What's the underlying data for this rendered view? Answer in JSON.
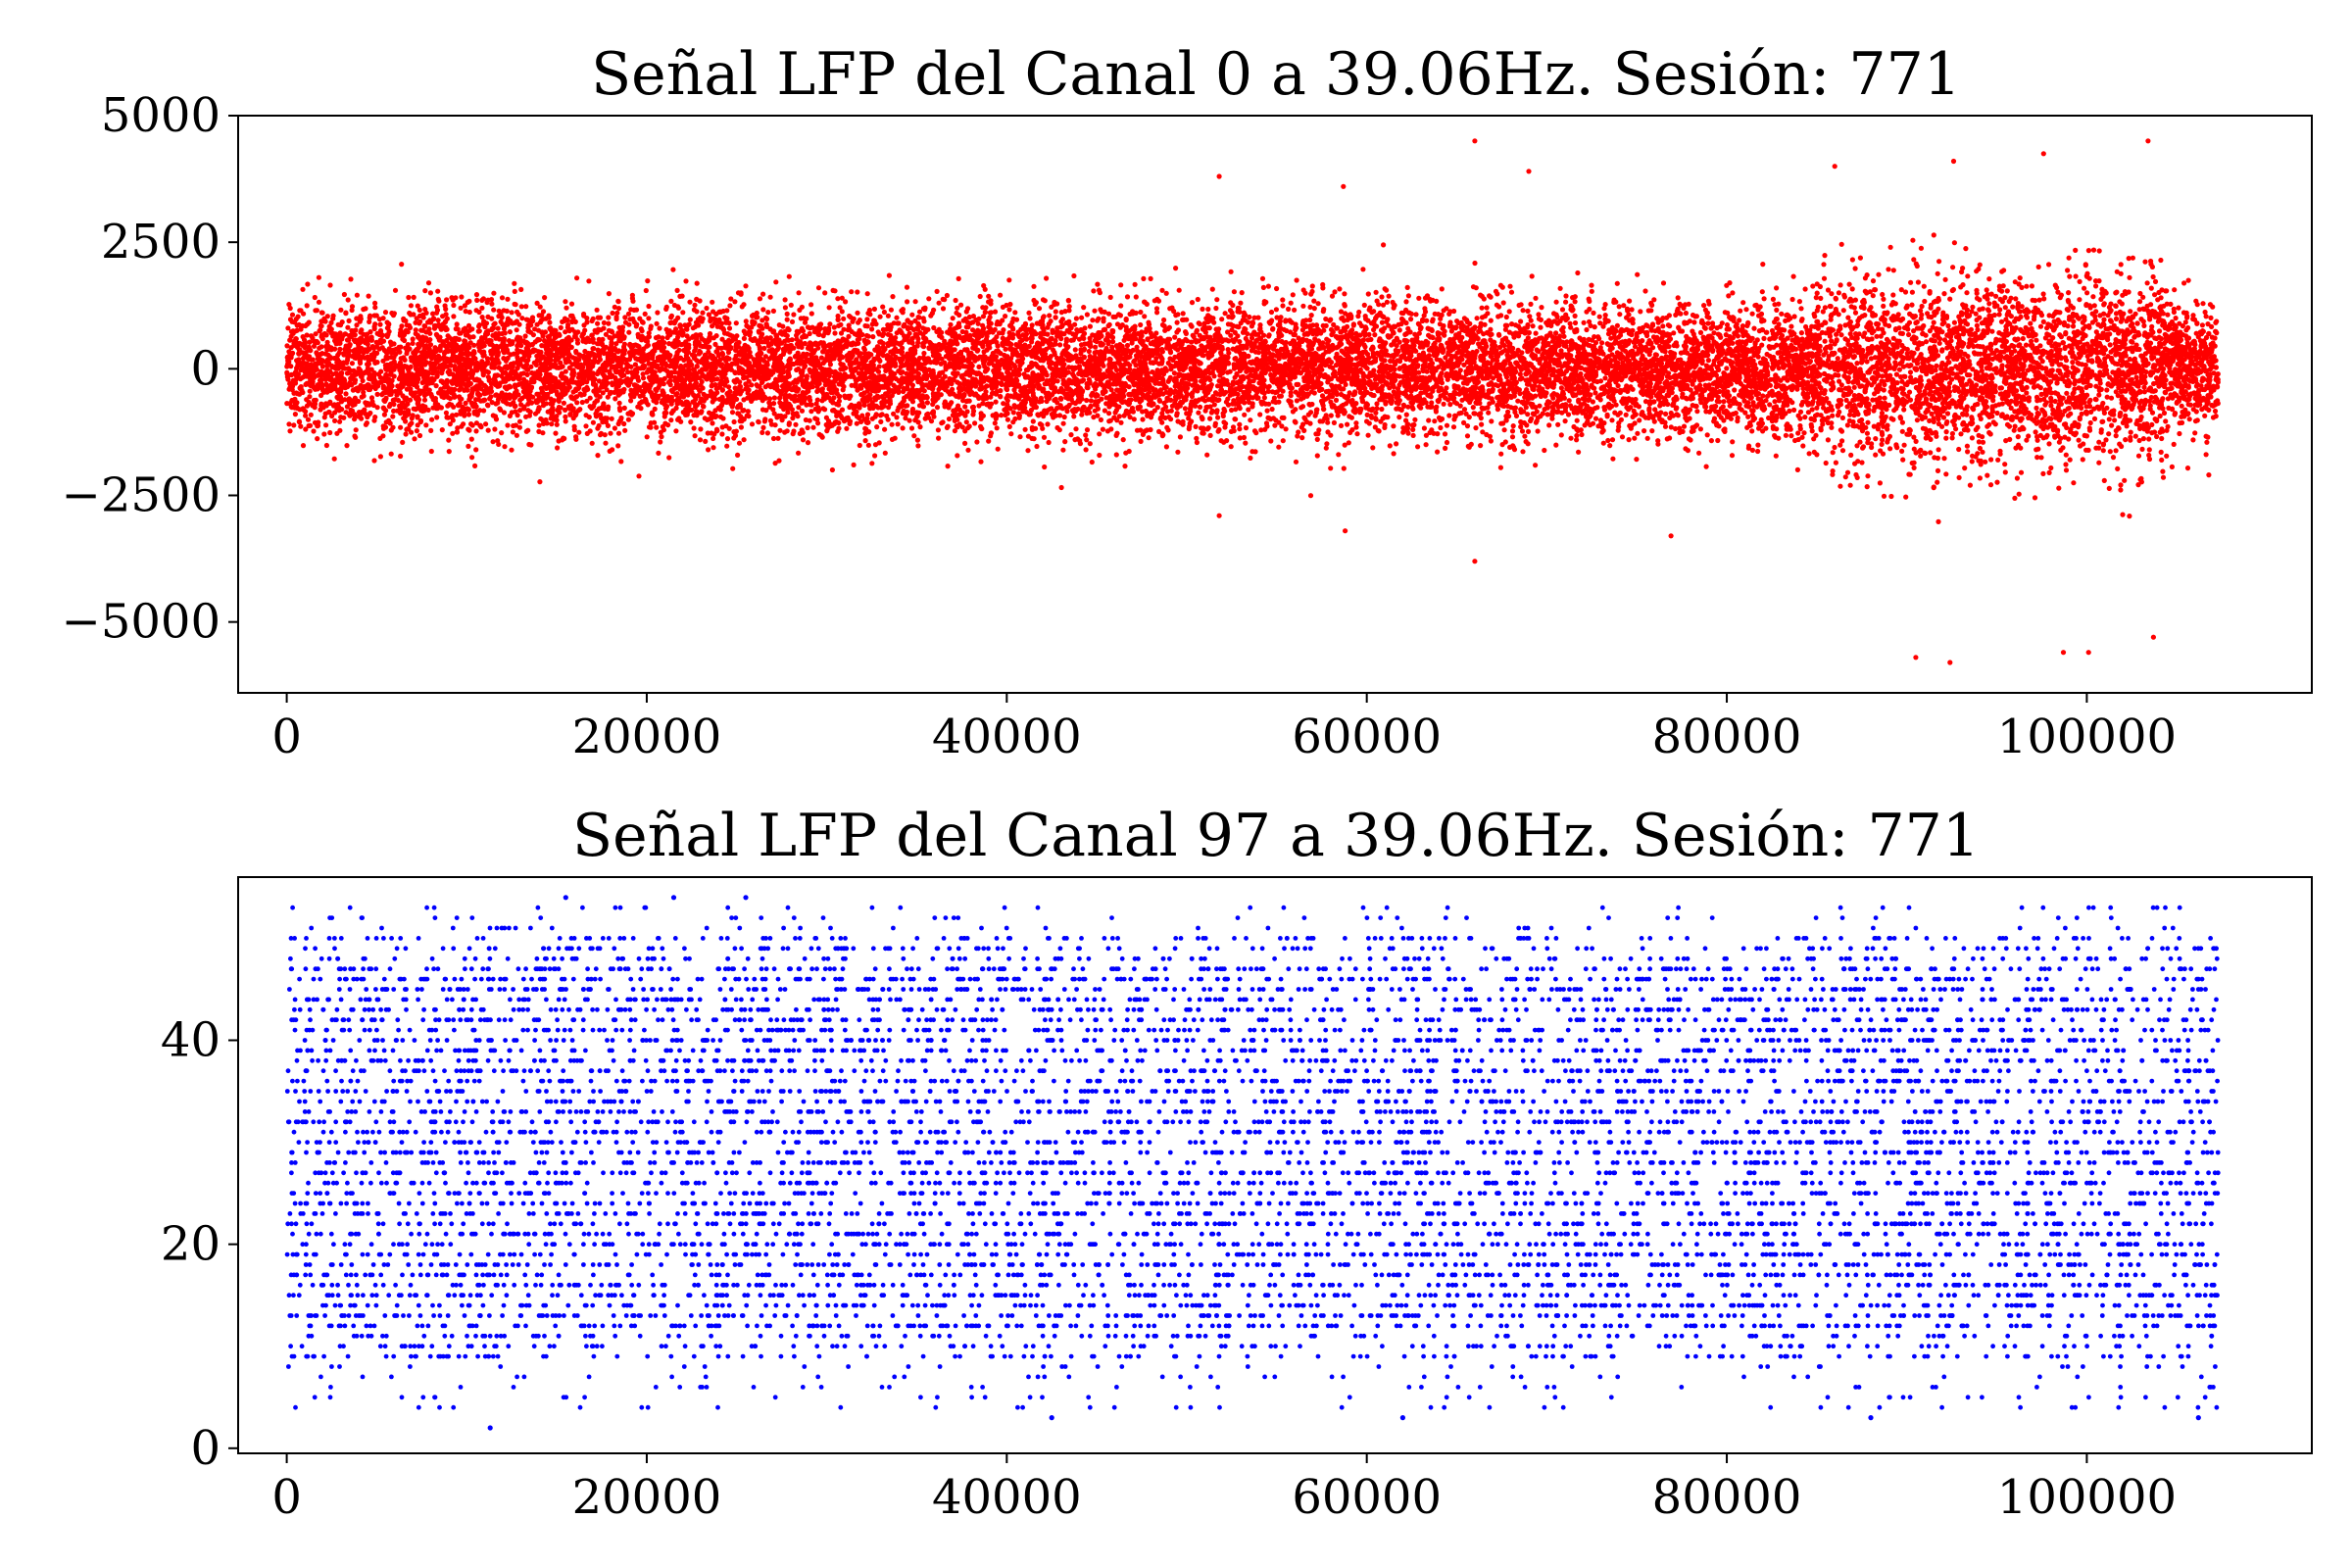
{
  "chart_data": [
    {
      "type": "scatter",
      "title": "Señal LFP del Canal 0 a 39.06Hz. Sesión: 771",
      "xlabel": "",
      "ylabel": "",
      "xlim": [
        -2700,
        112500
      ],
      "ylim": [
        -6400,
        5000
      ],
      "xticks": [
        0,
        20000,
        40000,
        60000,
        80000,
        100000
      ],
      "xtick_labels": [
        "0",
        "20000",
        "40000",
        "60000",
        "80000",
        "100000"
      ],
      "yticks": [
        5000,
        2500,
        0,
        -2500,
        -5000
      ],
      "ytick_labels": [
        "5000",
        "2500",
        "0",
        "−2500",
        "−5000"
      ],
      "grid": false,
      "series": [
        {
          "color": "#ff0000",
          "marker": "dot",
          "x_range": [
            0,
            107300
          ],
          "baseline": 0,
          "segments": [
            {
              "x": [
                0,
                85000
              ],
              "typical_spread": 1150,
              "peak_max": 3100,
              "peak_min": -2700
            },
            {
              "x": [
                85000,
                104500
              ],
              "typical_spread": 1600,
              "peak_max": 4200,
              "peak_min": -5800
            },
            {
              "x": [
                104500,
                107300
              ],
              "typical_spread": 1100,
              "peak_max": 3000,
              "peak_min": -2500
            }
          ],
          "outliers": [
            {
              "x": 51800,
              "y": 3800
            },
            {
              "x": 58700,
              "y": 3600
            },
            {
              "x": 66000,
              "y": 4500
            },
            {
              "x": 69000,
              "y": 3900
            },
            {
              "x": 86000,
              "y": 4000
            },
            {
              "x": 92600,
              "y": 4100
            },
            {
              "x": 97600,
              "y": 4250
            },
            {
              "x": 103400,
              "y": 4500
            },
            {
              "x": 51800,
              "y": -2900
            },
            {
              "x": 58800,
              "y": -3200
            },
            {
              "x": 66000,
              "y": -3800
            },
            {
              "x": 76900,
              "y": -3300
            },
            {
              "x": 90500,
              "y": -5700
            },
            {
              "x": 92400,
              "y": -5800
            },
            {
              "x": 98700,
              "y": -5600
            },
            {
              "x": 100100,
              "y": -5600
            },
            {
              "x": 103700,
              "y": -5300
            }
          ]
        }
      ]
    },
    {
      "type": "scatter",
      "title": "Señal LFP del Canal 97 a 39.06Hz. Sesión: 771",
      "xlabel": "",
      "ylabel": "",
      "xlim": [
        -2700,
        112500
      ],
      "ylim": [
        -0.5,
        56
      ],
      "xticks": [
        0,
        20000,
        40000,
        60000,
        80000,
        100000
      ],
      "xtick_labels": [
        "0",
        "20000",
        "40000",
        "60000",
        "80000",
        "100000"
      ],
      "yticks": [
        40,
        20,
        0
      ],
      "ytick_labels": [
        "40",
        "20",
        "0"
      ],
      "grid": false,
      "series": [
        {
          "color": "#0000ff",
          "marker": "dot",
          "x_range": [
            0,
            107300
          ],
          "value_step": 1,
          "dense_range": [
            9,
            50
          ],
          "sparse_range": [
            4,
            53
          ],
          "observed_min": 2,
          "observed_max": 54,
          "outliers": [
            {
              "x": 11300,
              "y": 2
            },
            {
              "x": 15500,
              "y": 54
            },
            {
              "x": 21500,
              "y": 54
            },
            {
              "x": 25500,
              "y": 54
            },
            {
              "x": 42500,
              "y": 3
            },
            {
              "x": 62000,
              "y": 3
            },
            {
              "x": 88000,
              "y": 3
            },
            {
              "x": 106200,
              "y": 3
            }
          ]
        }
      ]
    }
  ]
}
